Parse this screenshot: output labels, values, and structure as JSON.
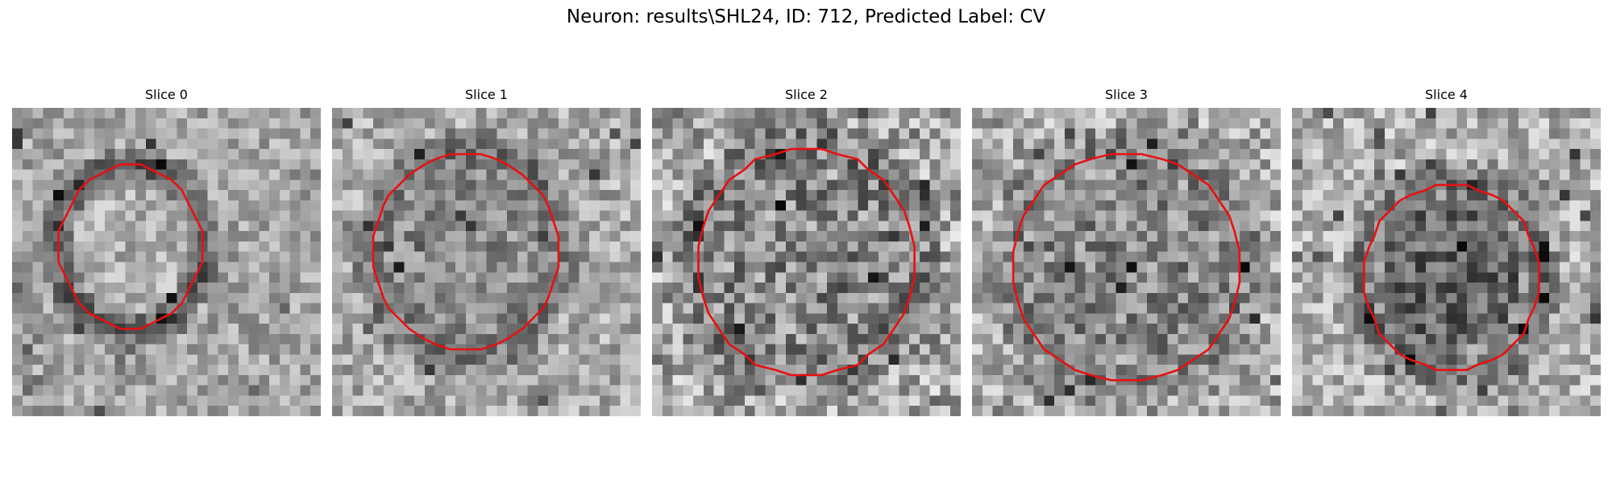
{
  "figure": {
    "title": "Neuron: results\\SHL24, ID: 712, Predicted Label: CV"
  },
  "panels": [
    {
      "title": "Slice 0"
    },
    {
      "title": "Slice 1"
    },
    {
      "title": "Slice 2"
    },
    {
      "title": "Slice 3"
    },
    {
      "title": "Slice 4"
    }
  ],
  "colors": {
    "contour": "#e8100f",
    "background": "#ffffff"
  }
}
